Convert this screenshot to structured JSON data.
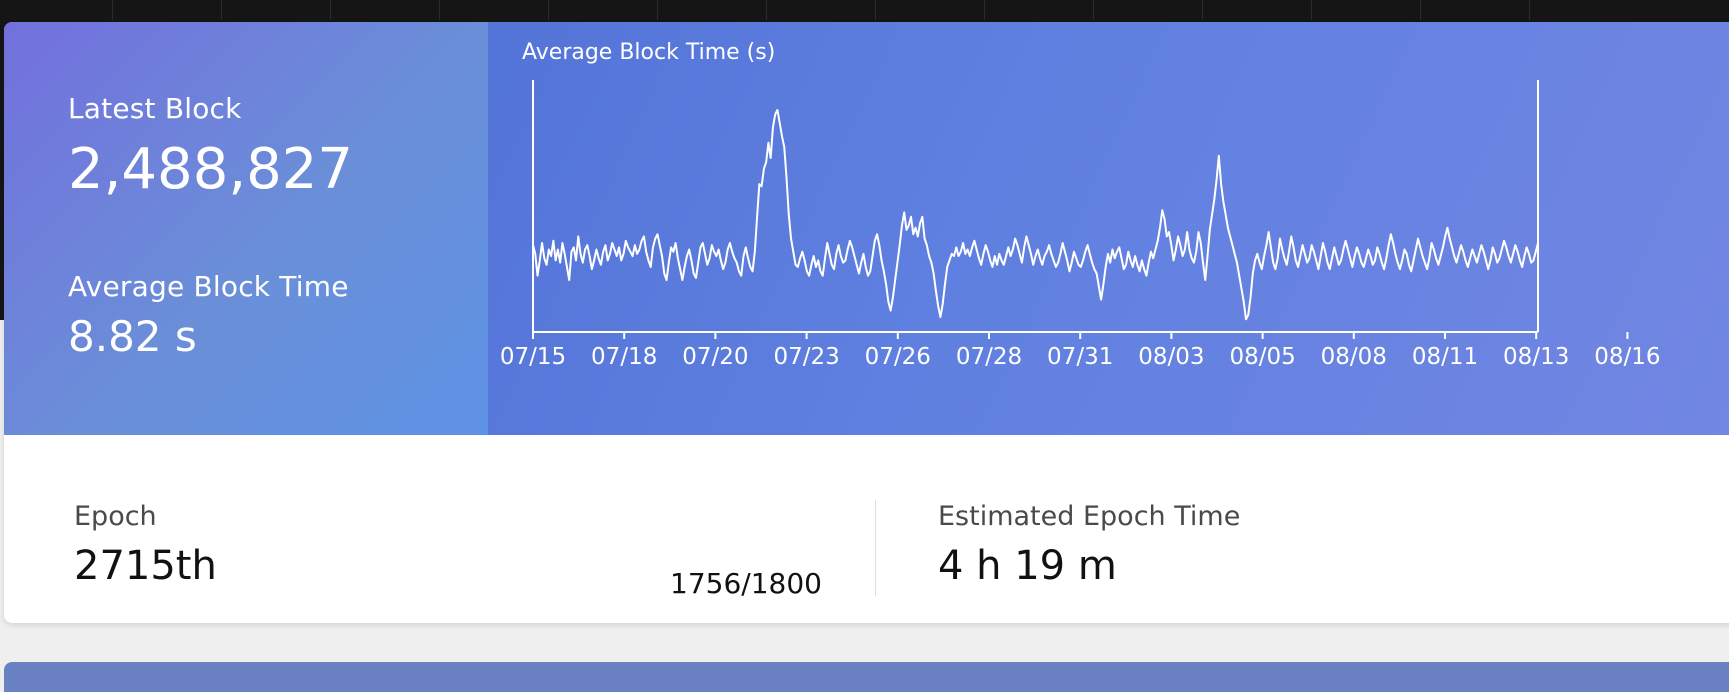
{
  "stats": {
    "latest_block_label": "Latest Block",
    "latest_block_value": "2,488,827",
    "avg_block_time_label": "Average Block Time",
    "avg_block_time_value": "8.82 s"
  },
  "epoch": {
    "label": "Epoch",
    "value": "2715th",
    "progress_text": "1756/1800",
    "progress_current": 1756,
    "progress_total": 1800
  },
  "estimated_epoch_time": {
    "label": "Estimated Epoch Time",
    "value": "4 h 19 m"
  },
  "colors": {
    "hero_blue": "#5a7ad8",
    "stats_purple": "#7370dd",
    "line": "#ffffff"
  },
  "chart_data": {
    "type": "line",
    "title": "Average Block Time (s)",
    "xlabel": "",
    "ylabel": "",
    "x_tick_labels": [
      "07/15",
      "07/18",
      "07/20",
      "07/23",
      "07/26",
      "07/28",
      "07/31",
      "08/03",
      "08/05",
      "08/08",
      "08/11",
      "08/13",
      "08/16"
    ],
    "grid": false,
    "legend": "none",
    "series": [
      {
        "values": [
          0.38,
          0.34,
          0.24,
          0.31,
          0.39,
          0.32,
          0.29,
          0.36,
          0.33,
          0.4,
          0.31,
          0.36,
          0.3,
          0.39,
          0.34,
          0.28,
          0.22,
          0.35,
          0.37,
          0.31,
          0.42,
          0.34,
          0.3,
          0.36,
          0.38,
          0.33,
          0.27,
          0.31,
          0.36,
          0.32,
          0.29,
          0.35,
          0.38,
          0.31,
          0.34,
          0.39,
          0.36,
          0.33,
          0.37,
          0.31,
          0.34,
          0.4,
          0.37,
          0.35,
          0.33,
          0.38,
          0.34,
          0.36,
          0.4,
          0.42,
          0.35,
          0.31,
          0.28,
          0.37,
          0.41,
          0.43,
          0.38,
          0.33,
          0.25,
          0.22,
          0.3,
          0.37,
          0.35,
          0.39,
          0.32,
          0.27,
          0.22,
          0.28,
          0.33,
          0.36,
          0.31,
          0.25,
          0.23,
          0.3,
          0.37,
          0.39,
          0.34,
          0.29,
          0.32,
          0.38,
          0.35,
          0.33,
          0.36,
          0.31,
          0.27,
          0.3,
          0.36,
          0.39,
          0.35,
          0.32,
          0.3,
          0.26,
          0.24,
          0.33,
          0.37,
          0.32,
          0.28,
          0.26,
          0.35,
          0.51,
          0.66,
          0.65,
          0.73,
          0.76,
          0.85,
          0.78,
          0.92,
          0.98,
          1.0,
          0.94,
          0.88,
          0.83,
          0.69,
          0.52,
          0.41,
          0.35,
          0.29,
          0.28,
          0.32,
          0.35,
          0.31,
          0.26,
          0.24,
          0.29,
          0.33,
          0.28,
          0.31,
          0.26,
          0.24,
          0.32,
          0.39,
          0.34,
          0.29,
          0.27,
          0.34,
          0.38,
          0.33,
          0.3,
          0.31,
          0.36,
          0.4,
          0.37,
          0.33,
          0.29,
          0.25,
          0.3,
          0.34,
          0.28,
          0.24,
          0.26,
          0.33,
          0.4,
          0.43,
          0.38,
          0.31,
          0.26,
          0.2,
          0.12,
          0.08,
          0.14,
          0.22,
          0.3,
          0.38,
          0.47,
          0.53,
          0.45,
          0.47,
          0.51,
          0.43,
          0.46,
          0.42,
          0.48,
          0.51,
          0.41,
          0.38,
          0.33,
          0.3,
          0.25,
          0.17,
          0.1,
          0.05,
          0.11,
          0.2,
          0.28,
          0.31,
          0.34,
          0.33,
          0.37,
          0.33,
          0.35,
          0.39,
          0.34,
          0.36,
          0.33,
          0.37,
          0.4,
          0.36,
          0.32,
          0.29,
          0.34,
          0.38,
          0.35,
          0.31,
          0.28,
          0.33,
          0.29,
          0.34,
          0.31,
          0.29,
          0.33,
          0.37,
          0.33,
          0.36,
          0.41,
          0.38,
          0.34,
          0.3,
          0.37,
          0.42,
          0.38,
          0.34,
          0.29,
          0.33,
          0.36,
          0.32,
          0.29,
          0.33,
          0.35,
          0.38,
          0.34,
          0.31,
          0.28,
          0.3,
          0.34,
          0.39,
          0.35,
          0.31,
          0.26,
          0.3,
          0.35,
          0.32,
          0.29,
          0.28,
          0.31,
          0.35,
          0.38,
          0.34,
          0.3,
          0.27,
          0.25,
          0.19,
          0.13,
          0.2,
          0.28,
          0.34,
          0.3,
          0.36,
          0.32,
          0.35,
          0.37,
          0.32,
          0.27,
          0.29,
          0.35,
          0.31,
          0.28,
          0.33,
          0.29,
          0.26,
          0.31,
          0.27,
          0.24,
          0.3,
          0.35,
          0.32,
          0.36,
          0.4,
          0.46,
          0.54,
          0.5,
          0.42,
          0.44,
          0.38,
          0.31,
          0.36,
          0.42,
          0.38,
          0.33,
          0.36,
          0.44,
          0.36,
          0.32,
          0.3,
          0.35,
          0.44,
          0.39,
          0.3,
          0.22,
          0.33,
          0.45,
          0.52,
          0.59,
          0.68,
          0.79,
          0.66,
          0.58,
          0.52,
          0.46,
          0.42,
          0.38,
          0.34,
          0.3,
          0.24,
          0.18,
          0.12,
          0.04,
          0.06,
          0.14,
          0.25,
          0.31,
          0.34,
          0.3,
          0.27,
          0.33,
          0.38,
          0.44,
          0.37,
          0.3,
          0.27,
          0.32,
          0.41,
          0.36,
          0.32,
          0.29,
          0.35,
          0.42,
          0.37,
          0.31,
          0.28,
          0.33,
          0.38,
          0.34,
          0.3,
          0.32,
          0.38,
          0.35,
          0.31,
          0.27,
          0.33,
          0.39,
          0.35,
          0.3,
          0.27,
          0.32,
          0.37,
          0.33,
          0.29,
          0.31,
          0.36,
          0.4,
          0.36,
          0.32,
          0.28,
          0.33,
          0.37,
          0.34,
          0.3,
          0.28,
          0.32,
          0.36,
          0.33,
          0.29,
          0.31,
          0.37,
          0.34,
          0.3,
          0.27,
          0.32,
          0.38,
          0.43,
          0.39,
          0.34,
          0.3,
          0.27,
          0.31,
          0.36,
          0.34,
          0.29,
          0.26,
          0.31,
          0.36,
          0.41,
          0.37,
          0.33,
          0.3,
          0.27,
          0.32,
          0.39,
          0.36,
          0.32,
          0.29,
          0.33,
          0.37,
          0.42,
          0.46,
          0.41,
          0.37,
          0.33,
          0.3,
          0.34,
          0.38,
          0.35,
          0.31,
          0.28,
          0.32,
          0.36,
          0.33,
          0.3,
          0.34,
          0.38,
          0.35,
          0.31,
          0.27,
          0.31,
          0.37,
          0.34,
          0.3,
          0.32,
          0.36,
          0.4,
          0.37,
          0.33,
          0.3,
          0.34,
          0.38,
          0.35,
          0.31,
          0.28,
          0.33,
          0.37,
          0.34,
          0.3,
          0.31,
          0.35,
          0.39
        ]
      }
    ]
  }
}
